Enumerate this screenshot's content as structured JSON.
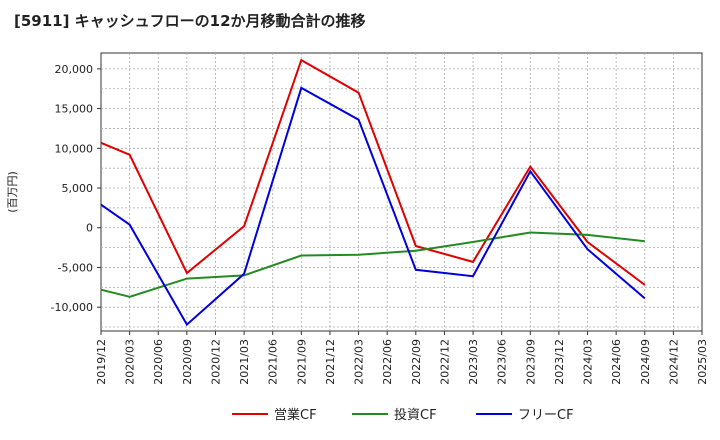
{
  "chart_data": {
    "type": "line",
    "title": "[5911]  キャッシュフローの12か月移動合計の推移",
    "ylabel": "(百万円)",
    "xlabel": "",
    "ylim": [
      -13000,
      22000
    ],
    "yticks": [
      -10000,
      -5000,
      0,
      5000,
      10000,
      15000,
      20000
    ],
    "ytick_labels": [
      "-10,000",
      "-5,000",
      "0",
      "5,000",
      "10,000",
      "15,000",
      "20,000"
    ],
    "categories": [
      "2019/12",
      "2020/03",
      "2020/06",
      "2020/09",
      "2020/12",
      "2021/03",
      "2021/06",
      "2021/09",
      "2021/12",
      "2022/03",
      "2022/06",
      "2022/09",
      "2022/12",
      "2023/03",
      "2023/06",
      "2023/09",
      "2023/12",
      "2024/03",
      "2024/06",
      "2024/09",
      "2024/12",
      "2025/03"
    ],
    "grid": true,
    "legend_position": "bottom",
    "series": [
      {
        "name": "営業CF",
        "color": "#e00000",
        "values": [
          10700,
          9200,
          null,
          -5700,
          null,
          200,
          null,
          21100,
          null,
          17000,
          null,
          -2300,
          null,
          -4300,
          null,
          7700,
          null,
          -1800,
          null,
          -7200,
          null,
          null
        ]
      },
      {
        "name": "投資CF",
        "color": "#228B22",
        "values": [
          -7800,
          -8700,
          null,
          -6400,
          null,
          -6000,
          null,
          -3500,
          null,
          -3400,
          null,
          -2900,
          null,
          -1800,
          null,
          -600,
          null,
          -900,
          null,
          -1700,
          null,
          null
        ]
      },
      {
        "name": "フリーCF",
        "color": "#0000dd",
        "values": [
          2900,
          400,
          null,
          -12200,
          null,
          -5800,
          null,
          17600,
          null,
          13600,
          null,
          -5300,
          null,
          -6100,
          null,
          7100,
          null,
          -2700,
          null,
          -8900,
          null,
          null
        ]
      }
    ]
  }
}
